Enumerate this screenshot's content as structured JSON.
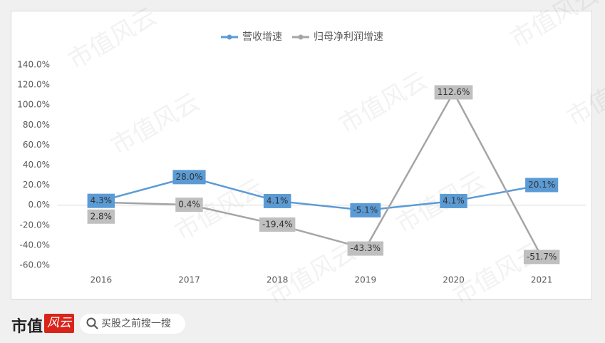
{
  "chart_data": {
    "type": "line",
    "categories": [
      "2016",
      "2017",
      "2018",
      "2019",
      "2020",
      "2021"
    ],
    "series": [
      {
        "name": "营收增速",
        "color": "#5b9bd5",
        "label_fill": "#5b9bd5",
        "values": [
          4.3,
          28.0,
          4.1,
          -5.1,
          4.1,
          20.1
        ],
        "value_labels": [
          "4.3%",
          "28.0%",
          "4.1%",
          "-5.1%",
          "4.1%",
          "20.1%"
        ]
      },
      {
        "name": "归母净利润增速",
        "color": "#a5a5a5",
        "label_fill": "#bfbfbf",
        "values": [
          2.8,
          0.4,
          -19.4,
          -43.3,
          112.6,
          -51.7
        ],
        "value_labels": [
          "2.8%",
          "0.4%",
          "-19.4%",
          "-43.3%",
          "112.6%",
          "-51.7%"
        ]
      }
    ],
    "ylim": [
      -60,
      140
    ],
    "yticks": [
      {
        "value": -60,
        "label": "-60.0%"
      },
      {
        "value": -40,
        "label": "-40.0%"
      },
      {
        "value": -20,
        "label": "-20.0%"
      },
      {
        "value": 0,
        "label": "0.0%"
      },
      {
        "value": 20,
        "label": "20.0%"
      },
      {
        "value": 40,
        "label": "40.0%"
      },
      {
        "value": 60,
        "label": "60.0%"
      },
      {
        "value": 80,
        "label": "80.0%"
      },
      {
        "value": 100,
        "label": "100.0%"
      },
      {
        "value": 120,
        "label": "120.0%"
      },
      {
        "value": 140,
        "label": "140.0%"
      }
    ],
    "grid": false,
    "legend": "top"
  },
  "watermark": "市值风云",
  "footer": {
    "logo": "市值",
    "logo_badge": "风云",
    "search_placeholder": "买股之前搜一搜"
  }
}
